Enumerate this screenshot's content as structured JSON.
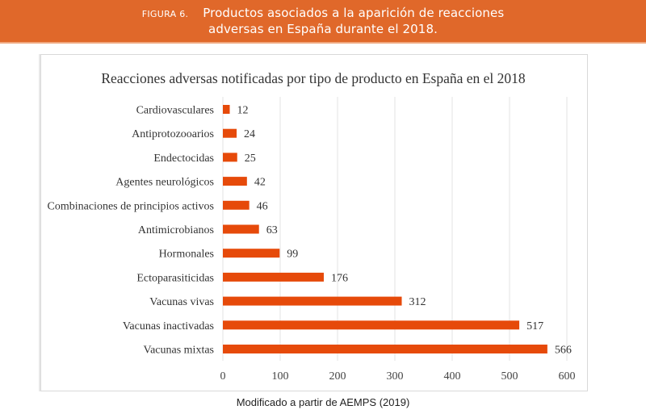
{
  "banner": {
    "figure_label": "FIGURA 6.",
    "title_line1": "Productos asociados a la aparición de reacciones",
    "title_line2": "adversas en España durante el 2018."
  },
  "source": "Modificado a partir de AEMPS (2019)",
  "colors": {
    "banner": "#e0682a",
    "bar": "#e64a0a"
  },
  "chart_data": {
    "type": "bar",
    "orientation": "horizontal",
    "title": "Reacciones adversas notificadas por tipo de producto en España en el 2018",
    "xlabel": "",
    "ylabel": "",
    "categories": [
      "Cardiovasculares",
      "Antiprotozooarios",
      "Endectocidas",
      "Agentes neurológicos",
      "Combinaciones de principios activos",
      "Antimicrobianos",
      "Hormonales",
      "Ectoparasiticidas",
      "Vacunas vivas",
      "Vacunas inactivadas",
      "Vacunas mixtas"
    ],
    "values": [
      12,
      24,
      25,
      42,
      46,
      63,
      99,
      176,
      312,
      517,
      566
    ],
    "data_labels": [
      "12",
      "24",
      "25",
      "42",
      "46",
      "63",
      "99",
      "176",
      "312",
      "517",
      "566"
    ],
    "xlim": [
      0,
      600
    ],
    "xticks": [
      0,
      100,
      200,
      300,
      400,
      500,
      600
    ],
    "xtick_labels": [
      "0",
      "100",
      "200",
      "300",
      "400",
      "500",
      "600"
    ],
    "grid": "vertical",
    "legend": "none"
  }
}
